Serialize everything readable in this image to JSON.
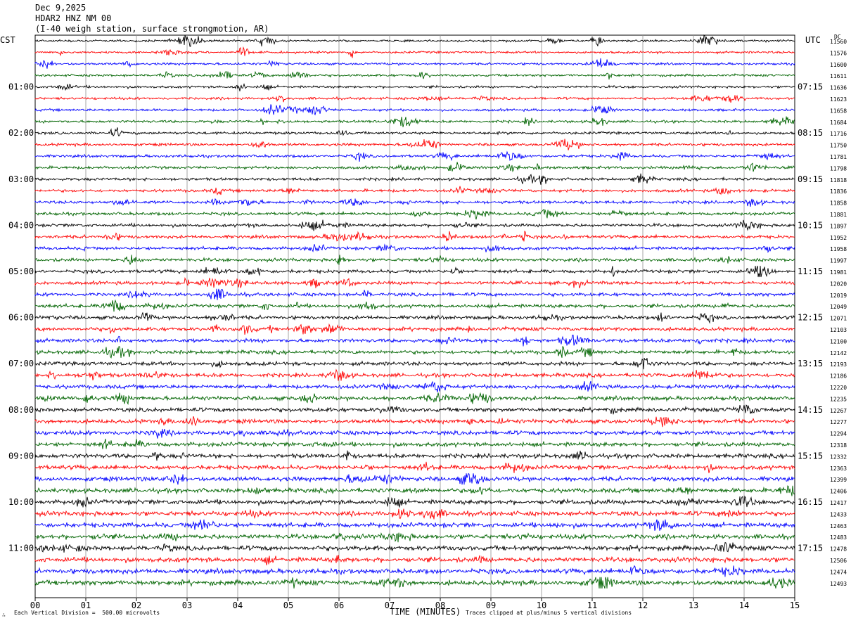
{
  "header": {
    "date": "Dec 9,2025",
    "station": "HDAR2 HNZ NM 00",
    "location": "(I-40 weigh station, surface strongmotion, AR)"
  },
  "left_axis_label": "CST",
  "right_axis_label": "UTC",
  "dc_label": "DC",
  "footer": {
    "left": "Each Vertical Division =  500.00 microvolts",
    "center": "TIME (MINUTES)",
    "right": "Traces clipped at plus/minus 5 vertical divisions"
  },
  "colors": {
    "cycle": [
      "#000000",
      "#ff0000",
      "#0000ff",
      "#006400"
    ],
    "grid": "#909090"
  },
  "chart_data": {
    "type": "line",
    "title": "HDAR2 HNZ NM 00 helicorder",
    "xlabel": "TIME (MINUTES)",
    "xlim": [
      0,
      15
    ],
    "x_ticks": [
      "00",
      "01",
      "02",
      "03",
      "04",
      "05",
      "06",
      "07",
      "08",
      "09",
      "10",
      "11",
      "12",
      "13",
      "14",
      "15"
    ],
    "trace_minutes": 15,
    "trace_count": 48,
    "hour_labels_cst": [
      "01:00",
      "02:00",
      "03:00",
      "04:00",
      "05:00",
      "06:00",
      "07:00",
      "08:00",
      "09:00",
      "10:00",
      "11:00"
    ],
    "hour_labels_utc": [
      "07:15",
      "08:15",
      "09:15",
      "10:15",
      "11:15",
      "12:15",
      "13:15",
      "14:15",
      "15:15",
      "16:15",
      "17:15"
    ],
    "dc_offsets": [
      11560,
      11576,
      11600,
      11611,
      11636,
      11623,
      11658,
      11684,
      11716,
      11750,
      11781,
      11798,
      11818,
      11836,
      11858,
      11881,
      11897,
      11952,
      11958,
      11997,
      11981,
      12020,
      12019,
      12049,
      12071,
      12103,
      12100,
      12142,
      12193,
      12186,
      12220,
      12235,
      12267,
      12277,
      12294,
      12318,
      12332,
      12363,
      12399,
      12406,
      12417,
      12433,
      12463,
      12483,
      12478,
      12506,
      12474,
      12493
    ]
  }
}
